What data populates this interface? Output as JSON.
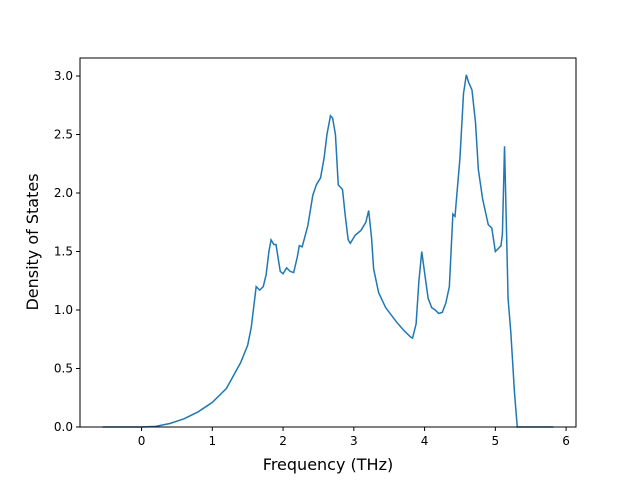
{
  "chart_data": {
    "type": "line",
    "x_label": "Frequency (THz)",
    "y_label": "Density of States",
    "xlim": [
      -0.87,
      6.14
    ],
    "ylim": [
      0,
      3.154
    ],
    "xticks": [
      0,
      1,
      2,
      3,
      4,
      5,
      6
    ],
    "yticks": [
      {
        "value": 0,
        "label": "0.0"
      },
      0.5,
      {
        "value": 1,
        "label": "1.0"
      },
      1.5,
      {
        "value": 2,
        "label": "2.0"
      },
      2.5,
      {
        "value": 3,
        "label": "3.0"
      }
    ],
    "series": [
      {
        "color": "#1f77b4",
        "x": [
          -0.55,
          0,
          0.2,
          0.4,
          0.6,
          0.8,
          1.0,
          1.2,
          1.4,
          1.5,
          1.55,
          1.62,
          1.67,
          1.72,
          1.76,
          1.8,
          1.83,
          1.87,
          1.9,
          1.96,
          2.0,
          2.05,
          2.1,
          2.15,
          2.2,
          2.23,
          2.27,
          2.35,
          2.42,
          2.47,
          2.53,
          2.58,
          2.62,
          2.67,
          2.7,
          2.74,
          2.78,
          2.84,
          2.88,
          2.92,
          2.95,
          2.98,
          3.02,
          3.1,
          3.17,
          3.21,
          3.25,
          3.28,
          3.35,
          3.45,
          3.6,
          3.7,
          3.8,
          3.83,
          3.88,
          3.92,
          3.96,
          4.0,
          4.05,
          4.1,
          4.15,
          4.2,
          4.25,
          4.3,
          4.35,
          4.4,
          4.43,
          4.5,
          4.55,
          4.59,
          4.62,
          4.67,
          4.72,
          4.76,
          4.82,
          4.9,
          4.95,
          5.0,
          5.05,
          5.08,
          5.1,
          5.13,
          5.18,
          5.22,
          5.27,
          5.31,
          5.82
        ],
        "values": [
          0,
          0,
          0.005,
          0.03,
          0.07,
          0.13,
          0.21,
          0.33,
          0.55,
          0.7,
          0.85,
          1.2,
          1.17,
          1.2,
          1.3,
          1.5,
          1.6,
          1.56,
          1.56,
          1.33,
          1.31,
          1.36,
          1.33,
          1.32,
          1.45,
          1.55,
          1.54,
          1.72,
          1.98,
          2.07,
          2.13,
          2.3,
          2.5,
          2.66,
          2.64,
          2.5,
          2.07,
          2.03,
          1.8,
          1.6,
          1.57,
          1.6,
          1.64,
          1.68,
          1.75,
          1.85,
          1.62,
          1.35,
          1.15,
          1.02,
          0.9,
          0.83,
          0.77,
          0.76,
          0.88,
          1.25,
          1.5,
          1.32,
          1.1,
          1.02,
          1.0,
          0.97,
          0.98,
          1.06,
          1.2,
          1.82,
          1.8,
          2.3,
          2.85,
          3.01,
          2.95,
          2.88,
          2.6,
          2.2,
          1.95,
          1.73,
          1.7,
          1.5,
          1.53,
          1.55,
          1.65,
          2.4,
          1.1,
          0.8,
          0.3,
          0,
          0
        ]
      }
    ]
  }
}
